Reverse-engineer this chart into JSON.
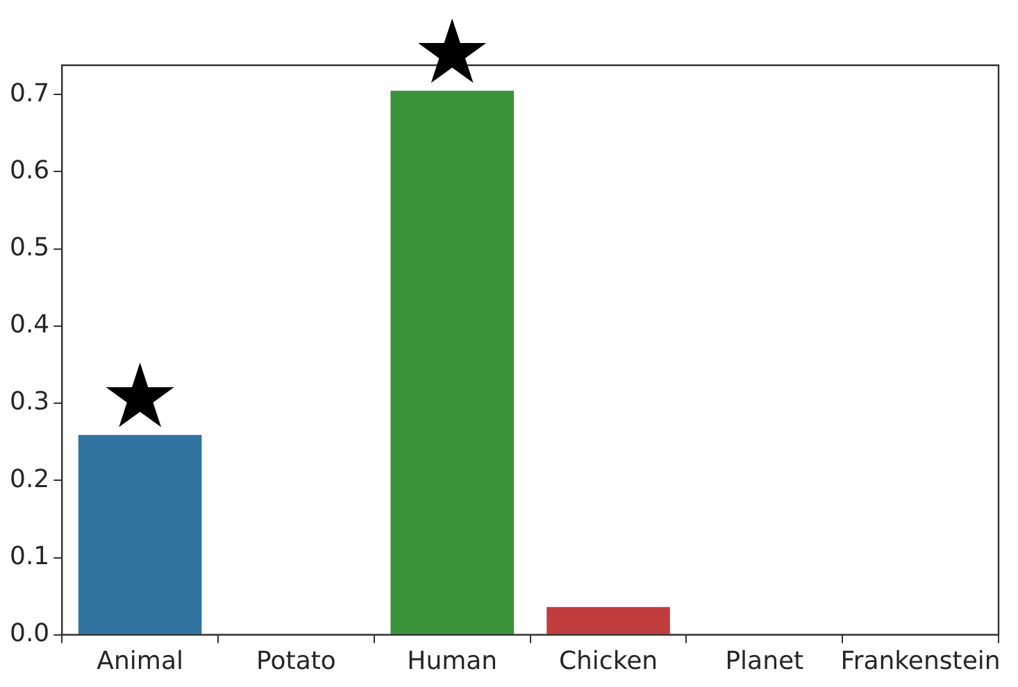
{
  "chart_data": {
    "type": "bar",
    "categories": [
      "Animal",
      "Potato",
      "Human",
      "Chicken",
      "Planet",
      "Frankenstein"
    ],
    "values": [
      0.259,
      0,
      0.705,
      0.036,
      0,
      0
    ],
    "colors": [
      "#3274a1",
      "#e1812c",
      "#3a923a",
      "#c03d3e",
      "#9372b2",
      "#845b53"
    ],
    "ylim": [
      0,
      0.738
    ],
    "yticks": [
      {
        "value": 0,
        "label": "0.0"
      },
      0.1,
      0.2,
      0.3,
      0.4,
      0.5,
      0.6,
      0.7
    ],
    "annotations": [
      {
        "text": "★",
        "x": "Animal",
        "y": 0.259
      },
      {
        "text": "★",
        "x": "Human",
        "y": 0.705
      }
    ]
  }
}
